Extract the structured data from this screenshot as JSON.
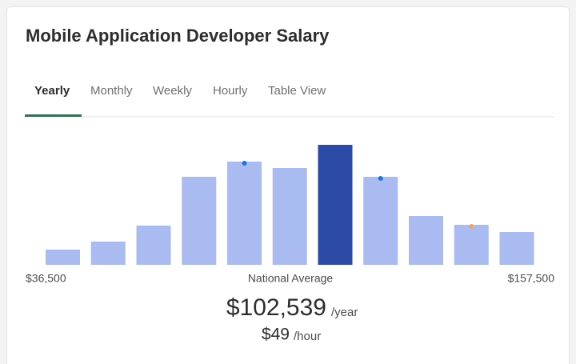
{
  "header": {
    "title": "Mobile Application Developer Salary"
  },
  "tabs": [
    "Yearly",
    "Monthly",
    "Weekly",
    "Hourly",
    "Table View"
  ],
  "chart_data": {
    "type": "bar",
    "categories": [
      null,
      null,
      null,
      null,
      null,
      null,
      null,
      null,
      null,
      null,
      null
    ],
    "values": [
      19,
      29,
      49,
      110,
      129,
      121,
      150,
      110,
      61,
      50,
      41
    ],
    "colors": [
      "#a9bbf1",
      "#a9bbf1",
      "#a9bbf1",
      "#a9bbf1",
      "#a9bbf1",
      "#a9bbf1",
      "#2a4aa5",
      "#a9bbf1",
      "#a9bbf1",
      "#a9bbf1",
      "#a9bbf1"
    ],
    "min_label": "$36,500",
    "center_label": "National Average",
    "max_label": "$157,500"
  },
  "average": {
    "yearly": "$102,539",
    "yearly_unit": "/year",
    "hourly": "$49",
    "hourly_unit": "/hour"
  }
}
